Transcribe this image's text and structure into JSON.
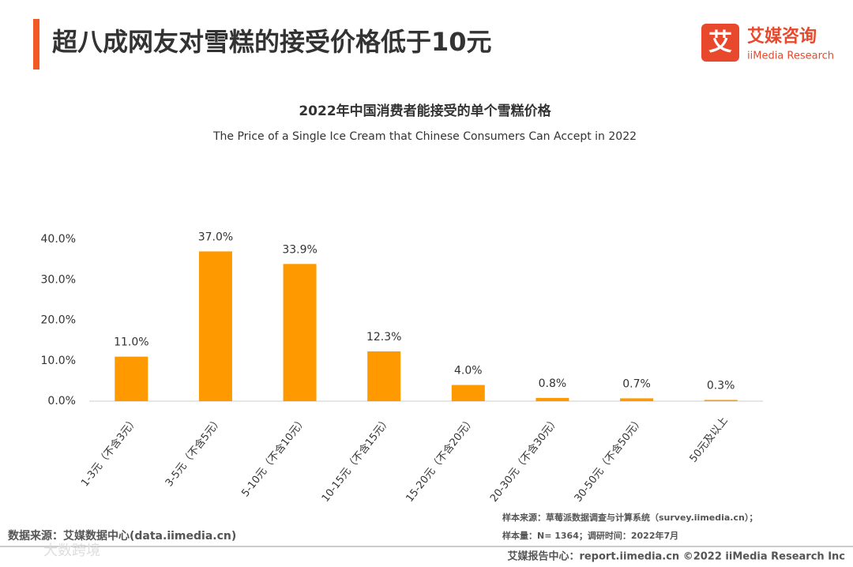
{
  "header": {
    "title": "超八成网友对雪糕的接受价格低于10元",
    "logo_mark": "艾",
    "logo_name": "艾媒咨询",
    "logo_en": "iiMedia Research"
  },
  "chart_data": {
    "type": "bar",
    "title": "2022年中国消费者能接受的单个雪糕价格",
    "subtitle": "The Price of a Single Ice Cream that Chinese Consumers Can Accept in 2022",
    "categories": [
      "1-3元（不含3元）",
      "3-5元（不含5元）",
      "5-10元（不含10元）",
      "10-15元（不含15元）",
      "15-20元（不含20元）",
      "20-30元（不含30元）",
      "30-50元（不含50元）",
      "50元及以上"
    ],
    "values": [
      11.0,
      37.0,
      33.9,
      12.3,
      4.0,
      0.8,
      0.7,
      0.3
    ],
    "value_labels": [
      "11.0%",
      "37.0%",
      "33.9%",
      "12.3%",
      "4.0%",
      "0.8%",
      "0.7%",
      "0.3%"
    ],
    "color": "#ff9900",
    "ylim": [
      0,
      40
    ],
    "yticks": [
      {
        "value": 0,
        "label": "0.0%"
      },
      {
        "value": 10,
        "label": "10.0%"
      },
      {
        "value": 20,
        "label": "20.0%"
      },
      {
        "value": 30,
        "label": "30.0%"
      },
      {
        "value": 40,
        "label": "40.0%"
      }
    ],
    "grid": false
  },
  "notes": {
    "source": "数据来源：艾媒数据中心(data.iimedia.cn)",
    "sample_source": "样本来源：草莓派数据调查与计算系统（survey.iimedia.cn）；",
    "sample_size": "样本量：N= 1364；调研时间：2022年7月",
    "footer": "艾媒报告中心：report.iimedia.cn   ©2022  iiMedia Research  Inc",
    "watermark": "大数跨境"
  }
}
